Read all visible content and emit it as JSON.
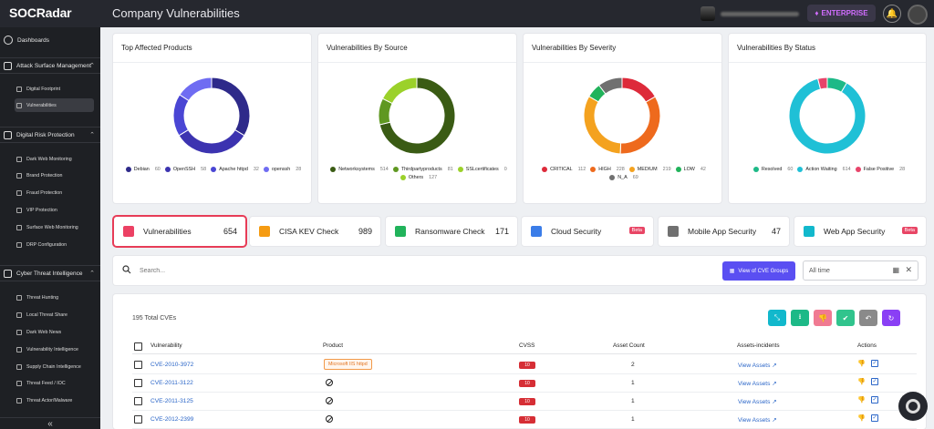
{
  "app": {
    "logo": "SOCRadar",
    "page_title": "Company Vulnerabilities",
    "plan": "ENTERPRISE"
  },
  "sidebar": {
    "dashboards": "Dashboards",
    "sections": [
      {
        "label": "Attack Surface Management",
        "items": [
          "Digital Footprint",
          "Vulnerabilities"
        ]
      },
      {
        "label": "Digital Risk Protection",
        "items": [
          "Dark Web Monitoring",
          "Brand Protection",
          "Fraud Protection",
          "VIP Protection",
          "Surface Web Monitoring",
          "DRP Configuration"
        ]
      },
      {
        "label": "Cyber Threat Intelligence",
        "items": [
          "Threat Hunting",
          "Local Threat Share",
          "Dark Web News",
          "Vulnerability Intelligence",
          "Supply Chain Intelligence",
          "Threat Feed / IOC",
          "Threat Actor/Malware"
        ]
      }
    ],
    "collapse": "«"
  },
  "cards": [
    {
      "title": "Top Affected Products",
      "legend": [
        {
          "label": "Debian",
          "count": "60",
          "color": "#2e2a8a"
        },
        {
          "label": "OpenSSH",
          "count": "58",
          "color": "#3c33b0"
        },
        {
          "label": "Apache httpd",
          "count": "32",
          "color": "#4a46d4"
        },
        {
          "label": "openssh",
          "count": "28",
          "color": "#6f6cf2"
        }
      ]
    },
    {
      "title": "Vulnerabilities By Source",
      "legend": [
        {
          "label": "Networksystems",
          "count": "514",
          "color": "#3a5b14"
        },
        {
          "label": "Thirdpartyproducts",
          "count": "81",
          "color": "#5f9821"
        },
        {
          "label": "SSLcertificates",
          "count": "0",
          "color": "#9bd12a"
        },
        {
          "label": "Others",
          "count": "127",
          "color": "#9bd12a"
        }
      ]
    },
    {
      "title": "Vulnerabilities By Severity",
      "legend": [
        {
          "label": "CRITICAL",
          "count": "112",
          "color": "#dd2a3a"
        },
        {
          "label": "HIGH",
          "count": "228",
          "color": "#ee6a1d"
        },
        {
          "label": "MEDIUM",
          "count": "219",
          "color": "#f4a21f"
        },
        {
          "label": "LOW",
          "count": "42",
          "color": "#21b35b"
        },
        {
          "label": "N_A",
          "count": "69",
          "color": "#707070"
        }
      ]
    },
    {
      "title": "Vulnerabilities By Status",
      "legend": [
        {
          "label": "Resolved",
          "count": "60",
          "color": "#1db987"
        },
        {
          "label": "Action Waiting",
          "count": "614",
          "color": "#1fc0d6"
        },
        {
          "label": "False Positive",
          "count": "28",
          "color": "#e8446a"
        }
      ]
    }
  ],
  "chart_data": [
    {
      "type": "pie",
      "title": "Top Affected Products",
      "categories": [
        "Debian",
        "OpenSSH",
        "Apache httpd",
        "openssh"
      ],
      "values": [
        60,
        58,
        32,
        28
      ]
    },
    {
      "type": "pie",
      "title": "Vulnerabilities By Source",
      "categories": [
        "Networksystems",
        "Thirdpartyproducts",
        "SSLcertificates",
        "Others"
      ],
      "values": [
        514,
        81,
        0,
        127
      ]
    },
    {
      "type": "pie",
      "title": "Vulnerabilities By Severity",
      "categories": [
        "CRITICAL",
        "HIGH",
        "MEDIUM",
        "LOW",
        "N_A"
      ],
      "values": [
        112,
        228,
        219,
        42,
        69
      ]
    },
    {
      "type": "pie",
      "title": "Vulnerabilities By Status",
      "categories": [
        "Resolved",
        "Action Waiting",
        "False Positive"
      ],
      "values": [
        60,
        614,
        28
      ]
    }
  ],
  "tabs": [
    {
      "label": "Vulnerabilities",
      "count": "654",
      "color": "#ec4164"
    },
    {
      "label": "CISA KEV Check",
      "count": "989",
      "color": "#f59b12"
    },
    {
      "label": "Ransomware Check",
      "count": "171",
      "color": "#21b35b"
    },
    {
      "label": "Cloud Security",
      "badge": "Beta",
      "color": "#3b7de8"
    },
    {
      "label": "Mobile App Security",
      "count": "47",
      "color": "#707070"
    },
    {
      "label": "Web App Security",
      "badge": "Beta",
      "color": "#12b8cc"
    }
  ],
  "search": {
    "placeholder": "Search...",
    "cve_groups": "View of CVE Groups",
    "date_placeholder": "All time"
  },
  "table": {
    "total": "195 Total CVEs",
    "headers": [
      "Vulnerability",
      "Product",
      "CVSS",
      "Asset Count",
      "Assets-incidents",
      "Actions"
    ],
    "rows": [
      {
        "cve": "CVE-2010-3972",
        "product": "Microsoft IIS httpd",
        "cvss": "10",
        "assets": "2",
        "link": "View Assets ↗"
      },
      {
        "cve": "CVE-2011-3122",
        "product": "",
        "cvss": "10",
        "assets": "1",
        "link": "View Assets ↗"
      },
      {
        "cve": "CVE-2011-3125",
        "product": "",
        "cvss": "10",
        "assets": "1",
        "link": "View Assets ↗"
      },
      {
        "cve": "CVE-2012-2399",
        "product": "",
        "cvss": "10",
        "assets": "1",
        "link": "View Assets ↗"
      },
      {
        "cve": "CVE-2012-3409",
        "product": "",
        "cvss": "10",
        "assets": "1",
        "link": "View Assets ↗"
      }
    ]
  }
}
